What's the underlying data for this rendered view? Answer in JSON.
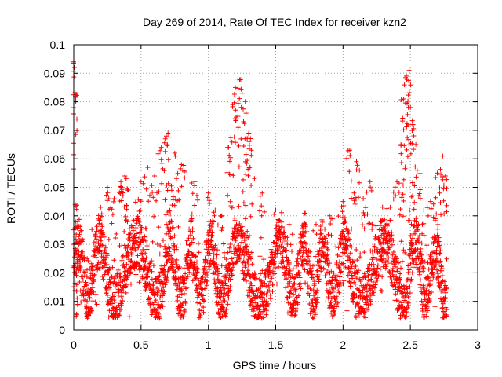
{
  "chart_data": {
    "type": "scatter",
    "title": "Day 269 of 2014, Rate Of TEC Index for receiver kzn2",
    "xlabel": "GPS time / hours",
    "ylabel": "ROTI / TECUs",
    "xlim": [
      0,
      3
    ],
    "ylim": [
      0,
      0.1
    ],
    "xticks": [
      0,
      0.5,
      1,
      1.5,
      2,
      2.5,
      3
    ],
    "xtick_labels": [
      "0",
      "0.5",
      "1",
      "1.5",
      "2",
      "2.5",
      "3"
    ],
    "yticks": [
      0,
      0.01,
      0.02,
      0.03,
      0.04,
      0.05,
      0.06,
      0.07,
      0.08,
      0.09,
      0.1
    ],
    "ytick_labels": [
      "0",
      "0.01",
      "0.02",
      "0.03",
      "0.04",
      "0.05",
      "0.06",
      "0.07",
      "0.08",
      "0.09",
      "0.1"
    ],
    "grid": true,
    "marker": "+",
    "color": "#ff0000",
    "series": [
      {
        "name": "ROTI",
        "x_range": [
          0,
          2.77
        ],
        "sample_points": [
          [
            0.0,
            0.094
          ],
          [
            0.005,
            0.092
          ],
          [
            0.01,
            0.044
          ],
          [
            0.02,
            0.019
          ],
          [
            0.03,
            0.038
          ],
          [
            0.05,
            0.022
          ],
          [
            0.1,
            0.025
          ],
          [
            0.15,
            0.017
          ],
          [
            0.2,
            0.043
          ],
          [
            0.25,
            0.05
          ],
          [
            0.3,
            0.046
          ],
          [
            0.35,
            0.052
          ],
          [
            0.38,
            0.054
          ],
          [
            0.4,
            0.049
          ],
          [
            0.45,
            0.033
          ],
          [
            0.5,
            0.052
          ],
          [
            0.55,
            0.057
          ],
          [
            0.6,
            0.054
          ],
          [
            0.65,
            0.064
          ],
          [
            0.68,
            0.067
          ],
          [
            0.7,
            0.069
          ],
          [
            0.75,
            0.062
          ],
          [
            0.8,
            0.058
          ],
          [
            0.9,
            0.052
          ],
          [
            1.0,
            0.048
          ],
          [
            1.05,
            0.042
          ],
          [
            1.1,
            0.04
          ],
          [
            1.15,
            0.064
          ],
          [
            1.18,
            0.079
          ],
          [
            1.2,
            0.085
          ],
          [
            1.22,
            0.088
          ],
          [
            1.25,
            0.083
          ],
          [
            1.28,
            0.076
          ],
          [
            1.3,
            0.069
          ],
          [
            1.32,
            0.063
          ],
          [
            1.4,
            0.048
          ],
          [
            1.5,
            0.042
          ],
          [
            1.6,
            0.037
          ],
          [
            1.7,
            0.033
          ],
          [
            1.8,
            0.037
          ],
          [
            1.9,
            0.04
          ],
          [
            2.0,
            0.045
          ],
          [
            2.05,
            0.063
          ],
          [
            2.1,
            0.059
          ],
          [
            2.15,
            0.046
          ],
          [
            2.2,
            0.052
          ],
          [
            2.3,
            0.036
          ],
          [
            2.4,
            0.052
          ],
          [
            2.43,
            0.065
          ],
          [
            2.45,
            0.081
          ],
          [
            2.47,
            0.089
          ],
          [
            2.49,
            0.091
          ],
          [
            2.5,
            0.078
          ],
          [
            2.52,
            0.072
          ],
          [
            2.55,
            0.056
          ],
          [
            2.6,
            0.042
          ],
          [
            2.65,
            0.045
          ],
          [
            2.7,
            0.055
          ],
          [
            2.74,
            0.061
          ],
          [
            2.76,
            0.054
          ]
        ],
        "typical_band": [
          0.005,
          0.035
        ]
      }
    ]
  }
}
